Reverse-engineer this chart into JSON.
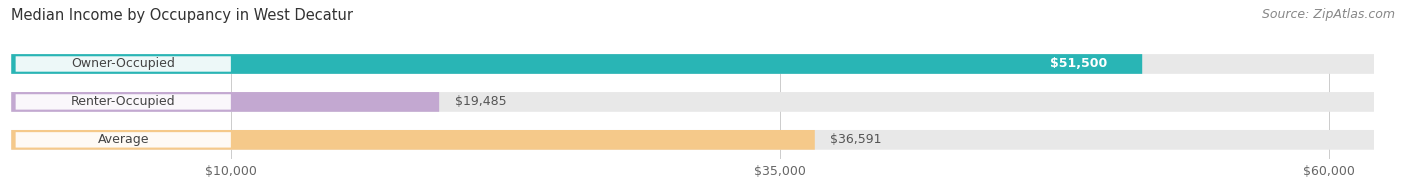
{
  "title": "Median Income by Occupancy in West Decatur",
  "source": "Source: ZipAtlas.com",
  "categories": [
    "Owner-Occupied",
    "Renter-Occupied",
    "Average"
  ],
  "values": [
    51500,
    19485,
    36591
  ],
  "bar_colors": [
    "#29b5b5",
    "#c3a8d1",
    "#f5c98a"
  ],
  "bar_bg_color": "#e8e8e8",
  "value_labels": [
    "$51,500",
    "$19,485",
    "$36,591"
  ],
  "value_label_inside": [
    true,
    false,
    false
  ],
  "x_ticks": [
    10000,
    35000,
    60000
  ],
  "x_tick_labels": [
    "$10,000",
    "$35,000",
    "$60,000"
  ],
  "xmax": 63000,
  "title_fontsize": 10.5,
  "source_fontsize": 9,
  "bar_label_fontsize": 9,
  "value_label_fontsize": 9,
  "tick_fontsize": 9,
  "bar_height": 0.52,
  "figsize": [
    14.06,
    1.96
  ],
  "dpi": 100
}
